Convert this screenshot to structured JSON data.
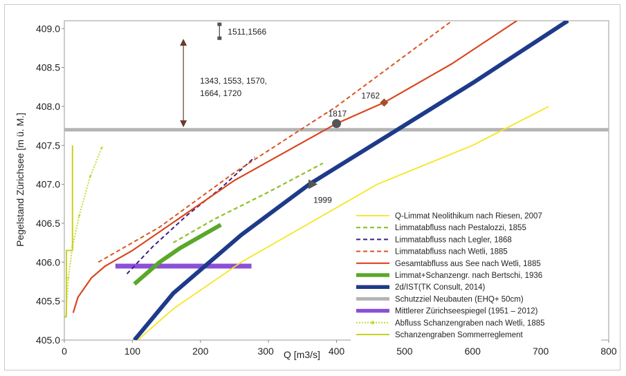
{
  "chart_data": {
    "type": "line",
    "xlabel": "Q [m3/s]",
    "ylabel": "Pegelstand Zürichsee [m ü. M.]",
    "xlim": [
      0,
      800
    ],
    "ylim": [
      405.0,
      409.1
    ],
    "x_ticks": [
      "0",
      "100",
      "200",
      "300",
      "400",
      "500",
      "600",
      "700",
      "800"
    ],
    "y_ticks": [
      "405.0",
      "405.5",
      "406.0",
      "406.5",
      "407.0",
      "407.5",
      "408.0",
      "408.5",
      "409.0"
    ],
    "legend_position": "bottom-right",
    "series": [
      {
        "name": "Q-Limmat Neolithikum nach Riesen, 2007",
        "color": "#f5e61e",
        "style": "solid",
        "width": 1.8,
        "points": [
          [
            108,
            405.0
          ],
          [
            160,
            405.4
          ],
          [
            260,
            406.0
          ],
          [
            360,
            406.5
          ],
          [
            460,
            407.0
          ],
          [
            600,
            407.5
          ],
          [
            712,
            408.0
          ]
        ]
      },
      {
        "name": "Limmatabfluss nach Pestalozzi, 1855",
        "color": "#8cbf2a",
        "style": "dashed",
        "width": 2.2,
        "points": [
          [
            160,
            406.25
          ],
          [
            220,
            406.55
          ],
          [
            300,
            406.9
          ],
          [
            380,
            407.27
          ]
        ]
      },
      {
        "name": "Limmatabfluss nach Legler, 1868",
        "color": "#3a2080",
        "style": "dashed",
        "width": 2,
        "points": [
          [
            92,
            405.85
          ],
          [
            130,
            406.2
          ],
          [
            180,
            406.6
          ],
          [
            230,
            406.95
          ],
          [
            280,
            407.35
          ]
        ]
      },
      {
        "name": "Limmatabfluss nach Wetli, 1885",
        "color": "#d9541e",
        "style": "dashed",
        "width": 2,
        "points": [
          [
            50,
            406.0
          ],
          [
            80,
            406.15
          ],
          [
            140,
            406.45
          ],
          [
            250,
            407.15
          ],
          [
            400,
            408.0
          ],
          [
            570,
            409.1
          ]
        ]
      },
      {
        "name": "Gesamtabfluss aus See nach Wetli, 1885",
        "color": "#d9451e",
        "style": "solid",
        "width": 2.2,
        "points": [
          [
            13,
            405.35
          ],
          [
            20,
            405.55
          ],
          [
            40,
            405.8
          ],
          [
            60,
            405.95
          ],
          [
            100,
            406.15
          ],
          [
            150,
            406.45
          ],
          [
            250,
            407.05
          ],
          [
            400,
            407.78
          ],
          [
            470,
            408.05
          ],
          [
            570,
            408.55
          ],
          [
            665,
            409.1
          ]
        ]
      },
      {
        "name": "Limmat+Schanzengr. nach Bertschi, 1936",
        "color": "#5aa82a",
        "style": "solid",
        "width": 6,
        "points": [
          [
            103,
            405.72
          ],
          [
            140,
            406.0
          ],
          [
            170,
            406.18
          ],
          [
            230,
            406.48
          ]
        ]
      },
      {
        "name": "2d/IST(TK Consult, 2014)",
        "color": "#1e3a8a",
        "style": "solid",
        "width": 6,
        "points": [
          [
            103,
            405.0
          ],
          [
            160,
            405.6
          ],
          [
            260,
            406.35
          ],
          [
            360,
            407.0
          ],
          [
            480,
            407.65
          ],
          [
            600,
            408.3
          ],
          [
            740,
            409.1
          ]
        ]
      },
      {
        "name": "Schutzziel Neubauten (EHQ+ 50cm)",
        "color": "#b4b4b4",
        "style": "solid",
        "width": 5,
        "points": [
          [
            0,
            407.7
          ],
          [
            800,
            407.7
          ]
        ]
      },
      {
        "name": "Mittlerer Zürichseespiegel (1951 – 2012)",
        "color": "#8c4fd8",
        "style": "solid",
        "width": 7,
        "points": [
          [
            75,
            405.95
          ],
          [
            275,
            405.95
          ]
        ]
      },
      {
        "name": "Abfluss Schanzengraben nach Wetli, 1885",
        "color": "#c9d83a",
        "style": "dotted",
        "width": 2,
        "points": [
          [
            2,
            405.3
          ],
          [
            6,
            405.8
          ],
          [
            12,
            406.2
          ],
          [
            22,
            406.6
          ],
          [
            38,
            407.1
          ],
          [
            55,
            407.47
          ]
        ]
      },
      {
        "name": "Schanzengraben Sommerreglement",
        "color": "#c8d21e",
        "style": "solid",
        "width": 2,
        "points": [
          [
            3,
            405.3
          ],
          [
            3,
            406.15
          ],
          [
            12,
            406.15
          ],
          [
            12,
            407.5
          ]
        ]
      }
    ],
    "annotations": [
      {
        "label": "1511,1566",
        "type": "range-bar",
        "x": 228,
        "y_low": 408.88,
        "y_high": 409.05
      },
      {
        "label": "1343, 1553, 1570,\n1664, 1720",
        "type": "double-arrow",
        "x": 175,
        "y_low": 407.75,
        "y_high": 408.85
      },
      {
        "label": "1817",
        "type": "circle-marker",
        "x": 400,
        "y": 407.78
      },
      {
        "label": "1762",
        "type": "diamond-marker",
        "x": 470,
        "y": 408.05
      },
      {
        "label": "1999",
        "type": "triangle-marker",
        "x": 365,
        "y": 407.0
      }
    ]
  }
}
